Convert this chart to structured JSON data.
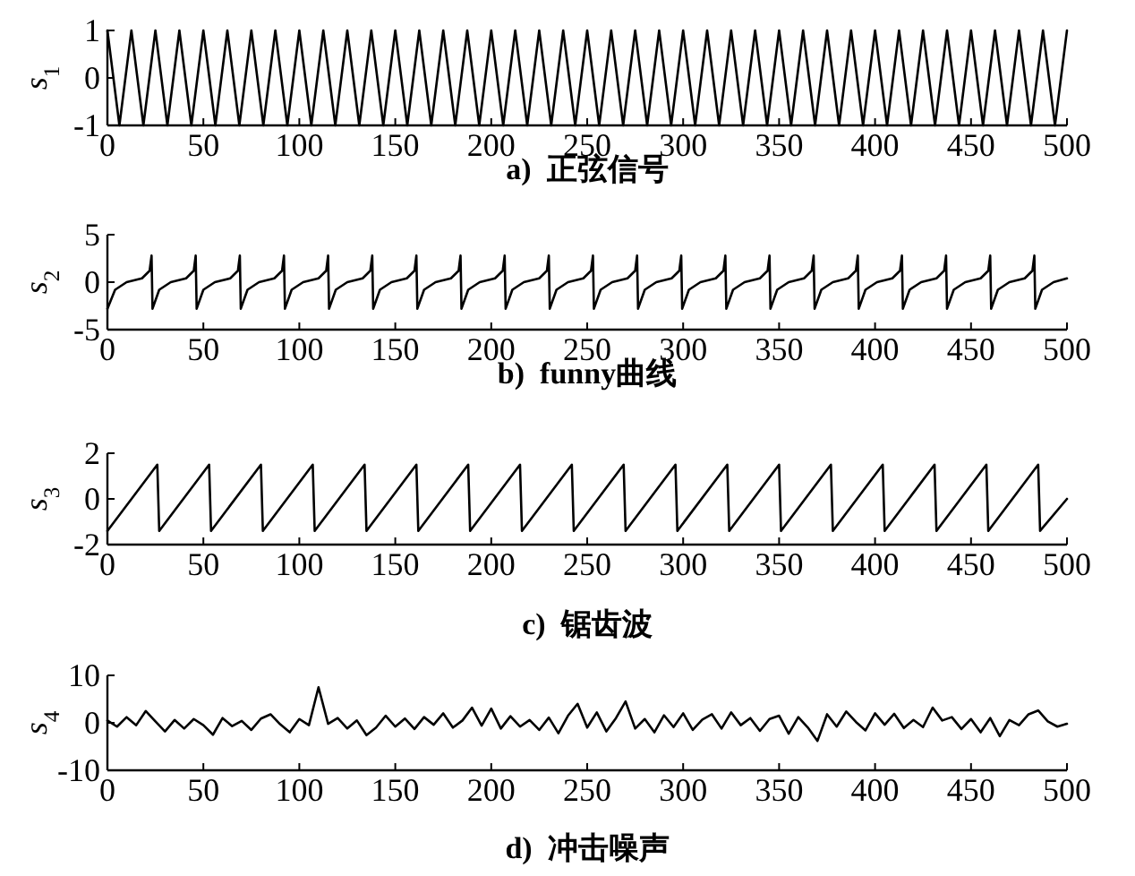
{
  "chart_data": [
    {
      "type": "line",
      "title": "a)  正弦信号",
      "ylabel": "s$_{1}$",
      "color": "#000000",
      "xlim": [
        0,
        500
      ],
      "ylim": [
        -1,
        1
      ],
      "xticks": [
        0,
        50,
        100,
        150,
        200,
        250,
        300,
        350,
        400,
        450,
        500
      ],
      "yticks": [
        -1,
        0,
        1
      ],
      "x": [
        0,
        6.25,
        12.5,
        18.75,
        25,
        31.25,
        37.5,
        43.75,
        50,
        56.25,
        62.5,
        68.75,
        75,
        81.25,
        87.5,
        93.75,
        100,
        106.25,
        112.5,
        118.75,
        125,
        131.25,
        137.5,
        143.75,
        150,
        156.25,
        162.5,
        168.75,
        175,
        181.25,
        187.5,
        193.75,
        200,
        206.25,
        212.5,
        218.75,
        225,
        231.25,
        237.5,
        243.75,
        250,
        256.25,
        262.5,
        268.75,
        275,
        281.25,
        287.5,
        293.75,
        300,
        306.25,
        312.5,
        318.75,
        325,
        331.25,
        337.5,
        343.75,
        350,
        356.25,
        362.5,
        368.75,
        375,
        381.25,
        387.5,
        393.75,
        400,
        406.25,
        412.5,
        418.75,
        425,
        431.25,
        437.5,
        443.75,
        450,
        456.25,
        462.5,
        468.75,
        475,
        481.25,
        487.5,
        493.75,
        500
      ],
      "values": [
        1,
        -1,
        1,
        -1,
        1,
        -1,
        1,
        -1,
        1,
        -1,
        1,
        -1,
        1,
        -1,
        1,
        -1,
        1,
        -1,
        1,
        -1,
        1,
        -1,
        1,
        -1,
        1,
        -1,
        1,
        -1,
        1,
        -1,
        1,
        -1,
        1,
        -1,
        1,
        -1,
        1,
        -1,
        1,
        -1,
        1,
        -1,
        1,
        -1,
        1,
        -1,
        1,
        -1,
        1,
        -1,
        1,
        -1,
        1,
        -1,
        1,
        -1,
        1,
        -1,
        1,
        -1,
        1,
        -1,
        1,
        -1,
        1,
        -1,
        1,
        -1,
        1,
        -1,
        1,
        -1,
        1,
        -1,
        1,
        -1,
        1,
        -1,
        1,
        -1,
        1
      ]
    },
    {
      "type": "line",
      "title": "b)  funny曲线",
      "ylabel": "s$_{2}$",
      "color": "#000000",
      "xlim": [
        0,
        500
      ],
      "ylim": [
        -5,
        5
      ],
      "xticks": [
        0,
        50,
        100,
        150,
        200,
        250,
        300,
        350,
        400,
        450,
        500
      ],
      "yticks": [
        -5,
        0,
        5
      ],
      "x": [
        0,
        4,
        10,
        18,
        22,
        23,
        23.5,
        27,
        33,
        41,
        45,
        46,
        46.5,
        50,
        56,
        64,
        68,
        69,
        69.5,
        73,
        79,
        87,
        91,
        92,
        92.5,
        96,
        102,
        110,
        114,
        115,
        115.5,
        119,
        125,
        133,
        137,
        138,
        138.5,
        142,
        148,
        156,
        160,
        161,
        161.5,
        165,
        171,
        179,
        183,
        184,
        184.5,
        188,
        194,
        202,
        206,
        207,
        207.5,
        211,
        217,
        225,
        229,
        230,
        230.5,
        234,
        240,
        248,
        252,
        253,
        253.5,
        257,
        263,
        271,
        275,
        276,
        276.5,
        280,
        286,
        294,
        298,
        299,
        299.5,
        303,
        309,
        317,
        321,
        322,
        322.5,
        326,
        332,
        340,
        344,
        345,
        345.5,
        349,
        355,
        363,
        367,
        368,
        368.5,
        372,
        378,
        386,
        390,
        391,
        391.5,
        395,
        401,
        409,
        413,
        414,
        414.5,
        418,
        424,
        432,
        436,
        437,
        437.5,
        441,
        447,
        455,
        459,
        460,
        460.5,
        464,
        470,
        478,
        482,
        483,
        483.5,
        487,
        493,
        500
      ],
      "values": [
        -2.8,
        -0.8,
        0,
        0.4,
        1.2,
        2.8,
        -2.8,
        -0.8,
        0,
        0.4,
        1.2,
        2.8,
        -2.8,
        -0.8,
        0,
        0.4,
        1.2,
        2.8,
        -2.8,
        -0.8,
        0,
        0.4,
        1.2,
        2.8,
        -2.8,
        -0.8,
        0,
        0.4,
        1.2,
        2.8,
        -2.8,
        -0.8,
        0,
        0.4,
        1.2,
        2.8,
        -2.8,
        -0.8,
        0,
        0.4,
        1.2,
        2.8,
        -2.8,
        -0.8,
        0,
        0.4,
        1.2,
        2.8,
        -2.8,
        -0.8,
        0,
        0.4,
        1.2,
        2.8,
        -2.8,
        -0.8,
        0,
        0.4,
        1.2,
        2.8,
        -2.8,
        -0.8,
        0,
        0.4,
        1.2,
        2.8,
        -2.8,
        -0.8,
        0,
        0.4,
        1.2,
        2.8,
        -2.8,
        -0.8,
        0,
        0.4,
        1.2,
        2.8,
        -2.8,
        -0.8,
        0,
        0.4,
        1.2,
        2.8,
        -2.8,
        -0.8,
        0,
        0.4,
        1.2,
        2.8,
        -2.8,
        -0.8,
        0,
        0.4,
        1.2,
        2.8,
        -2.8,
        -0.8,
        0,
        0.4,
        1.2,
        2.8,
        -2.8,
        -0.8,
        0,
        0.4,
        1.2,
        2.8,
        -2.8,
        -0.8,
        0,
        0.4,
        1.2,
        2.8,
        -2.8,
        -0.8,
        0,
        0.4,
        1.2,
        2.8,
        -2.8,
        -0.8,
        0,
        0.4,
        1.2,
        2.8,
        -2.8,
        -0.8,
        0,
        0.4
      ]
    },
    {
      "type": "line",
      "title": "c)  锯齿波",
      "ylabel": "s$_{3}$",
      "color": "#000000",
      "xlim": [
        0,
        500
      ],
      "ylim": [
        -2,
        2
      ],
      "xticks": [
        0,
        50,
        100,
        150,
        200,
        250,
        300,
        350,
        400,
        450,
        500
      ],
      "yticks": [
        -2,
        0,
        2
      ],
      "x": [
        0,
        26,
        27,
        53,
        54,
        80,
        81,
        107,
        108,
        134,
        135,
        161,
        162,
        188,
        189,
        215,
        216,
        242,
        243,
        269,
        270,
        296,
        297,
        323,
        324,
        350,
        351,
        377,
        378,
        404,
        405,
        431,
        432,
        458,
        459,
        485,
        486,
        500
      ],
      "values": [
        -1.4,
        1.5,
        -1.4,
        1.5,
        -1.4,
        1.5,
        -1.4,
        1.5,
        -1.4,
        1.5,
        -1.4,
        1.5,
        -1.4,
        1.5,
        -1.4,
        1.5,
        -1.4,
        1.5,
        -1.4,
        1.5,
        -1.4,
        1.5,
        -1.4,
        1.5,
        -1.4,
        1.5,
        -1.4,
        1.5,
        -1.4,
        1.5,
        -1.4,
        1.5,
        -1.4,
        1.5,
        -1.4,
        1.5,
        -1.4,
        0
      ]
    },
    {
      "type": "line",
      "title": "d)  冲击噪声",
      "ylabel": "s$_{4}$",
      "color": "#000000",
      "xlim": [
        0,
        500
      ],
      "ylim": [
        -10,
        10
      ],
      "xticks": [
        0,
        50,
        100,
        150,
        200,
        250,
        300,
        350,
        400,
        450,
        500
      ],
      "yticks": [
        -10,
        0,
        10
      ],
      "x": [
        0,
        5,
        10,
        15,
        20,
        25,
        30,
        35,
        40,
        45,
        50,
        55,
        60,
        65,
        70,
        75,
        80,
        85,
        90,
        95,
        100,
        105,
        110,
        115,
        120,
        125,
        130,
        135,
        140,
        145,
        150,
        155,
        160,
        165,
        170,
        175,
        180,
        185,
        190,
        195,
        200,
        205,
        210,
        215,
        220,
        225,
        230,
        235,
        240,
        245,
        250,
        255,
        260,
        265,
        270,
        275,
        280,
        285,
        290,
        295,
        300,
        305,
        310,
        315,
        320,
        325,
        330,
        335,
        340,
        345,
        350,
        355,
        360,
        365,
        370,
        375,
        380,
        385,
        390,
        395,
        400,
        405,
        410,
        415,
        420,
        425,
        430,
        435,
        440,
        445,
        450,
        455,
        460,
        465,
        470,
        475,
        480,
        485,
        490,
        495,
        500
      ],
      "values": [
        0.5,
        -0.8,
        1.2,
        -0.5,
        2.5,
        0.3,
        -1.8,
        0.6,
        -1.2,
        0.8,
        -0.5,
        -2.5,
        1.0,
        -0.7,
        0.4,
        -1.5,
        0.9,
        1.8,
        -0.3,
        -2.0,
        0.8,
        -0.5,
        7.5,
        -0.2,
        1.0,
        -1.2,
        0.5,
        -2.6,
        -1.0,
        1.5,
        -0.8,
        0.9,
        -1.3,
        1.2,
        -0.4,
        2.0,
        -1.0,
        0.5,
        3.2,
        -0.6,
        3.0,
        -1.2,
        1.4,
        -0.8,
        0.6,
        -1.5,
        1.1,
        -2.2,
        1.5,
        4.0,
        -1.0,
        2.2,
        -1.8,
        1.0,
        4.5,
        -1.2,
        0.8,
        -2.0,
        1.6,
        -0.9,
        2.0,
        -1.5,
        0.7,
        1.8,
        -1.2,
        2.2,
        -0.5,
        1.0,
        -1.7,
        0.8,
        1.5,
        -2.3,
        1.2,
        -1.0,
        -3.8,
        1.8,
        -0.8,
        2.4,
        0.2,
        -1.6,
        2.0,
        -0.4,
        1.9,
        -1.1,
        0.6,
        -0.9,
        3.2,
        0.5,
        1.2,
        -1.3,
        0.8,
        -2.0,
        1.0,
        -2.8,
        0.6,
        -0.5,
        1.8,
        2.6,
        0.3,
        -0.8,
        -0.2
      ]
    }
  ]
}
